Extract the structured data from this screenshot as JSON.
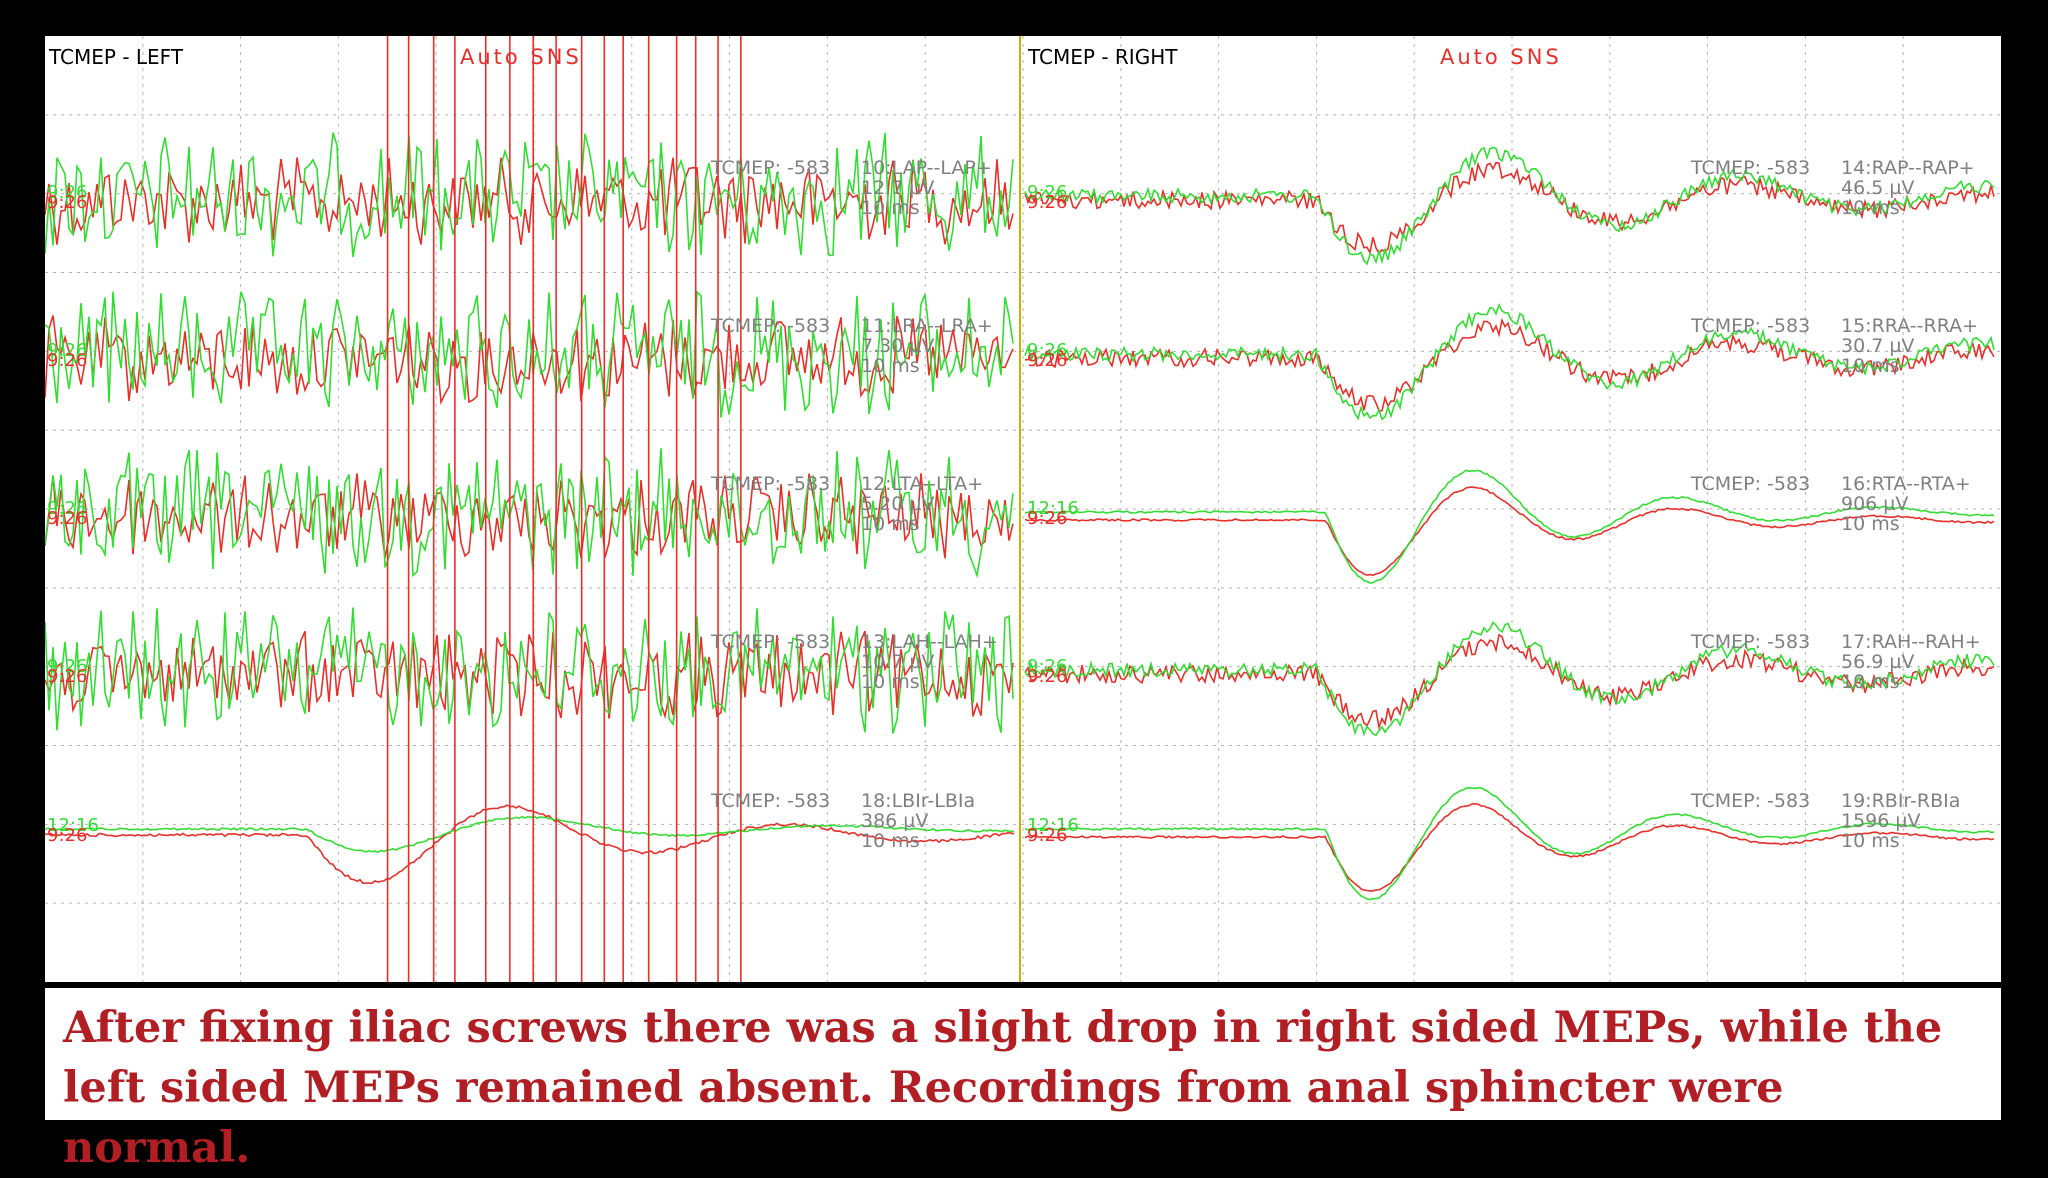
{
  "panels": [
    {
      "title": "TCMEP - LEFT",
      "mode": "Auto SNS"
    },
    {
      "title": "TCMEP - RIGHT",
      "mode": "Auto SNS"
    }
  ],
  "colors": {
    "baseline_trace": "#e8302a",
    "current_trace": "#33dd33",
    "grid": "#b4b4b4",
    "divider": "#c8b400",
    "label": "#808080",
    "caption": "#b11f24"
  },
  "chart_data": {
    "type": "line",
    "description": "Transcranial motor evoked potential traces; red = baseline, green = current. Channels listed top-to-bottom for left and right panels.",
    "x_unit": "ms",
    "channels": {
      "left": [
        {
          "header": "TCMEP: -583",
          "name": "10:LAP--LAP+",
          "amplitude": "12.7 µV",
          "timebase": "10 ms",
          "time_red": "9:26",
          "time_green": "9:26",
          "green_status": "noise"
        },
        {
          "header": "TCMEP: -583",
          "name": "11:LRA--LRA+",
          "amplitude": "7.30 µV",
          "timebase": "10 ms",
          "time_red": "9:26",
          "time_green": "9:26",
          "green_status": "noise"
        },
        {
          "header": "TCMEP: -583",
          "name": "12:LTA--LTA+",
          "amplitude": "5.20 µV",
          "timebase": "10 ms",
          "time_red": "9:26",
          "time_green": "9:26",
          "green_status": "noise"
        },
        {
          "header": "TCMEP: -583",
          "name": "13:LAH--LAH+",
          "amplitude": "10.7 µV",
          "timebase": "10 ms",
          "time_red": "9:26",
          "time_green": "9:26",
          "green_status": "noise"
        },
        {
          "header": "TCMEP: -583",
          "name": "18:LBIr-LBIa",
          "amplitude": "386 µV",
          "timebase": "10 ms",
          "time_red": "9:26",
          "time_green": "12:16",
          "green_status": "response"
        }
      ],
      "right": [
        {
          "header": "TCMEP: -583",
          "name": "14:RAP--RAP+",
          "amplitude": "46.5 µV",
          "timebase": "10 ms",
          "time_red": "9:26",
          "time_green": "9:26",
          "green_status": "response"
        },
        {
          "header": "TCMEP: -583",
          "name": "15:RRA--RRA+",
          "amplitude": "30.7 µV",
          "timebase": "10 ms",
          "time_red": "9:26",
          "time_green": "9:26",
          "green_status": "response"
        },
        {
          "header": "TCMEP: -583",
          "name": "16:RTA--RTA+",
          "amplitude": "906 µV",
          "timebase": "10 ms",
          "time_red": "9:26",
          "time_green": "12:16",
          "green_status": "response"
        },
        {
          "header": "TCMEP: -583",
          "name": "17:RAH--RAH+",
          "amplitude": "56.9 µV",
          "timebase": "10 ms",
          "time_red": "9:26",
          "time_green": "9:26",
          "green_status": "response"
        },
        {
          "header": "TCMEP: -583",
          "name": "19:RBIr-RBIa",
          "amplitude": "1596 µV",
          "timebase": "10 ms",
          "time_red": "9:26",
          "time_green": "12:16",
          "green_status": "response"
        }
      ]
    },
    "grid": true,
    "grid_divisions": {
      "x": 10,
      "y": 8
    }
  },
  "caption": "After fixing iliac screws there was a slight drop in right sided MEPs, while the left sided MEPs remained absent. Recordings from anal sphincter were normal."
}
